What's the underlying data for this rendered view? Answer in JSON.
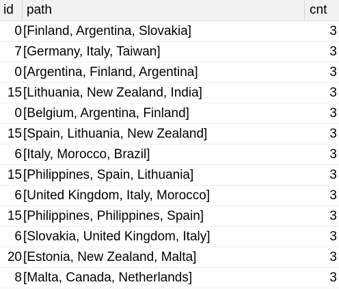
{
  "table": {
    "headers": {
      "id": "id",
      "path": "path",
      "cnt": "cnt"
    },
    "rows": [
      {
        "id": "0",
        "path": "[Finland, Argentina, Slovakia]",
        "cnt": "3"
      },
      {
        "id": "7",
        "path": "[Germany, Italy, Taiwan]",
        "cnt": "3"
      },
      {
        "id": "0",
        "path": "[Argentina, Finland, Argentina]",
        "cnt": "3"
      },
      {
        "id": "15",
        "path": "[Lithuania, New Zealand, India]",
        "cnt": "3"
      },
      {
        "id": "0",
        "path": "[Belgium, Argentina, Finland]",
        "cnt": "3"
      },
      {
        "id": "15",
        "path": "[Spain, Lithuania, New Zealand]",
        "cnt": "3"
      },
      {
        "id": "6",
        "path": "[Italy, Morocco, Brazil]",
        "cnt": "3"
      },
      {
        "id": "15",
        "path": "[Philippines, Spain, Lithuania]",
        "cnt": "3"
      },
      {
        "id": "6",
        "path": "[United Kingdom, Italy, Morocco]",
        "cnt": "3"
      },
      {
        "id": "15",
        "path": "[Philippines, Philippines, Spain]",
        "cnt": "3"
      },
      {
        "id": "6",
        "path": "[Slovakia, United Kingdom, Italy]",
        "cnt": "3"
      },
      {
        "id": "20",
        "path": "[Estonia, New Zealand, Malta]",
        "cnt": "3"
      },
      {
        "id": "8",
        "path": "[Malta, Canada, Netherlands]",
        "cnt": "3"
      }
    ]
  }
}
